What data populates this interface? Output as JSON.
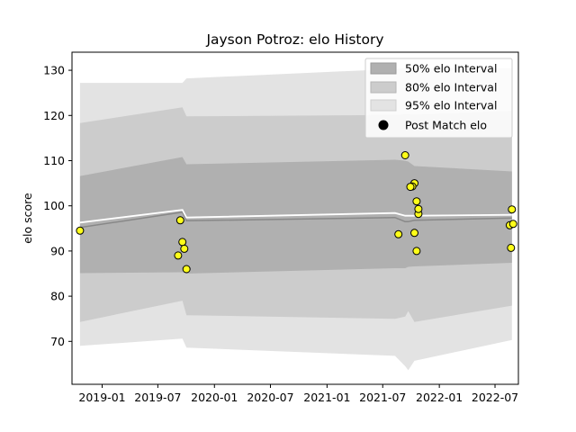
{
  "chart_data": {
    "type": "scatter",
    "title": "Jayson Potroz: elo History",
    "xlabel": "",
    "ylabel": "elo score",
    "xlim": [
      "2018-09-25",
      "2022-09-15"
    ],
    "ylim": [
      60.5,
      134
    ],
    "x_ticks": [
      "2019-01",
      "2019-07",
      "2020-01",
      "2020-07",
      "2021-01",
      "2021-07",
      "2022-01",
      "2022-07"
    ],
    "y_ticks": [
      70,
      80,
      90,
      100,
      110,
      120,
      130
    ],
    "legend_position": "top-right",
    "grid": false,
    "colors": {
      "band_50": "#b0b0b0",
      "band_80": "#cccccc",
      "band_95": "#e3e3e3",
      "mean_line": "#888888",
      "median_line": "#ffffff",
      "point_fill": "#ffff1a",
      "point_edge": "#000000"
    },
    "legend": [
      {
        "label": "50% elo Interval",
        "key": "band_50"
      },
      {
        "label": "80% elo Interval",
        "key": "band_80"
      },
      {
        "label": "95% elo Interval",
        "key": "band_95"
      },
      {
        "label": "Post Match elo",
        "key": "points"
      }
    ],
    "bands": {
      "x": [
        "2018-10-21",
        "2019-09-19",
        "2019-10-02",
        "2021-08-10",
        "2021-09-12",
        "2021-09-22",
        "2021-10-12",
        "2022-08-25"
      ],
      "band_95": {
        "upper": [
          127.2,
          127.2,
          128.2,
          130.3,
          130.5,
          130.5,
          130.5,
          130.5
        ],
        "lower": [
          69.0,
          70.6,
          68.6,
          66.8,
          64.5,
          63.6,
          65.7,
          70.3
        ]
      },
      "band_80": {
        "upper": [
          118.3,
          121.8,
          119.8,
          120.1,
          120.3,
          120.3,
          120.2,
          121.0
        ],
        "lower": [
          74.3,
          79.0,
          75.8,
          75.0,
          75.5,
          76.7,
          74.3,
          77.9
        ]
      },
      "band_50": {
        "upper": [
          106.6,
          110.8,
          109.2,
          110.2,
          110.0,
          109.8,
          108.8,
          107.6
        ],
        "lower": [
          85.1,
          85.3,
          85.0,
          86.2,
          86.2,
          86.5,
          86.6,
          87.4
        ]
      },
      "mean": [
        95.2,
        98.6,
        96.7,
        97.4,
        96.5,
        96.5,
        96.8,
        97.3
      ],
      "median": [
        96.3,
        99.1,
        97.4,
        98.4,
        97.8,
        97.8,
        97.8,
        98.0
      ]
    },
    "points": {
      "x": [
        "2018-10-21",
        "2019-09-12",
        "2019-09-19",
        "2019-09-05",
        "2019-09-25",
        "2019-10-02",
        "2021-09-12",
        "2021-08-21",
        "2021-10-12",
        "2021-10-05",
        "2021-09-29",
        "2021-10-19",
        "2021-10-25",
        "2021-10-25",
        "2021-10-12",
        "2021-10-19",
        "2022-08-25",
        "2022-08-18",
        "2022-08-29",
        "2022-08-22"
      ],
      "y": [
        94.5,
        96.8,
        92.0,
        89.0,
        90.5,
        86.0,
        111.2,
        93.7,
        105.0,
        104.3,
        104.2,
        101.0,
        98.2,
        99.3,
        94.0,
        90.0,
        99.2,
        95.7,
        96.0,
        90.7
      ]
    }
  }
}
